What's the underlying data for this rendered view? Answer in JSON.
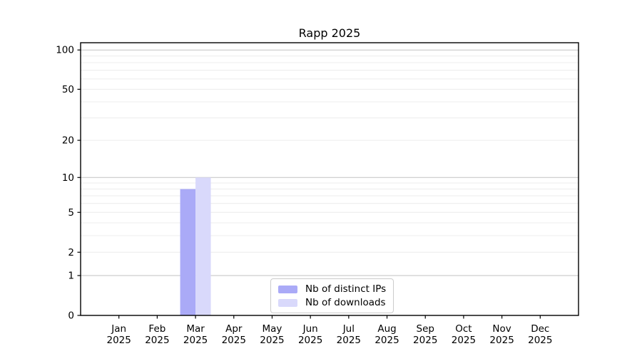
{
  "chart_data": {
    "type": "bar",
    "title": "Rapp 2025",
    "x_tick_labels": [
      {
        "month": "Jan",
        "year": "2025"
      },
      {
        "month": "Feb",
        "year": "2025"
      },
      {
        "month": "Mar",
        "year": "2025"
      },
      {
        "month": "Apr",
        "year": "2025"
      },
      {
        "month": "May",
        "year": "2025"
      },
      {
        "month": "Jun",
        "year": "2025"
      },
      {
        "month": "Jul",
        "year": "2025"
      },
      {
        "month": "Aug",
        "year": "2025"
      },
      {
        "month": "Sep",
        "year": "2025"
      },
      {
        "month": "Oct",
        "year": "2025"
      },
      {
        "month": "Nov",
        "year": "2025"
      },
      {
        "month": "Dec",
        "year": "2025"
      }
    ],
    "series": [
      {
        "name": "Nb of distinct IPs",
        "color": "#aaaaf7",
        "values": [
          0,
          0,
          8,
          0,
          0,
          0,
          0,
          0,
          0,
          0,
          0,
          0
        ]
      },
      {
        "name": "Nb of downloads",
        "color": "#d9d9fb",
        "values": [
          0,
          0,
          10,
          0,
          0,
          0,
          0,
          0,
          0,
          0,
          0,
          0
        ]
      }
    ],
    "yscale": "log1p",
    "yticks": [
      0,
      1,
      2,
      5,
      10,
      20,
      50,
      100
    ],
    "ylim": [
      0,
      115
    ],
    "grid_major_values": [
      1,
      10,
      100
    ],
    "grid_minor_values": [
      2,
      3,
      4,
      5,
      6,
      7,
      8,
      9,
      20,
      30,
      40,
      50,
      60,
      70,
      80,
      90
    ],
    "legend_position": "lower center",
    "colors": {
      "axis": "#000000",
      "tick_label": "#000000",
      "grid_major": "#c2c2c2",
      "grid_minor": "#ececec",
      "background": "#ffffff"
    }
  }
}
